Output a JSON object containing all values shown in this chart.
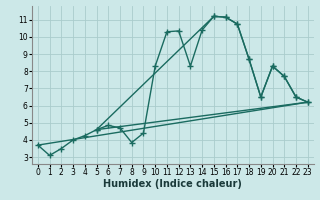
{
  "bg_color": "#cce8e8",
  "grid_color": "#aacccc",
  "line_color": "#1a6b60",
  "line_width": 1.0,
  "marker": "+",
  "markersize": 4,
  "markeredgewidth": 1.0,
  "xlabel": "Humidex (Indice chaleur)",
  "xlabel_fontsize": 7,
  "yticks": [
    3,
    4,
    5,
    6,
    7,
    8,
    9,
    10,
    11
  ],
  "ylim": [
    2.6,
    11.8
  ],
  "xlim": [
    -0.5,
    23.5
  ],
  "xticks": [
    0,
    1,
    2,
    3,
    4,
    5,
    6,
    7,
    8,
    9,
    10,
    11,
    12,
    13,
    14,
    15,
    16,
    17,
    18,
    19,
    20,
    21,
    22,
    23
  ],
  "curve1_x": [
    0,
    1,
    2,
    3,
    4,
    5,
    6,
    7,
    8,
    9,
    10,
    11,
    12,
    13,
    14,
    15,
    16,
    17,
    18,
    19,
    20,
    21,
    22,
    23
  ],
  "curve1_y": [
    3.7,
    3.1,
    3.5,
    4.0,
    4.25,
    4.6,
    4.85,
    4.7,
    3.85,
    4.4,
    8.3,
    10.3,
    10.35,
    8.3,
    10.4,
    11.2,
    11.15,
    10.75,
    8.7,
    6.5,
    8.3,
    7.7,
    6.5,
    6.2
  ],
  "curve2_x": [
    5,
    15,
    16,
    17,
    18,
    19,
    20,
    21,
    22,
    23
  ],
  "curve2_y": [
    4.6,
    11.2,
    11.15,
    10.75,
    8.7,
    6.5,
    8.3,
    7.7,
    6.5,
    6.2
  ],
  "curve3_x": [
    5,
    23
  ],
  "curve3_y": [
    4.6,
    6.2
  ],
  "curve4_x": [
    0,
    23
  ],
  "curve4_y": [
    3.7,
    6.2
  ]
}
